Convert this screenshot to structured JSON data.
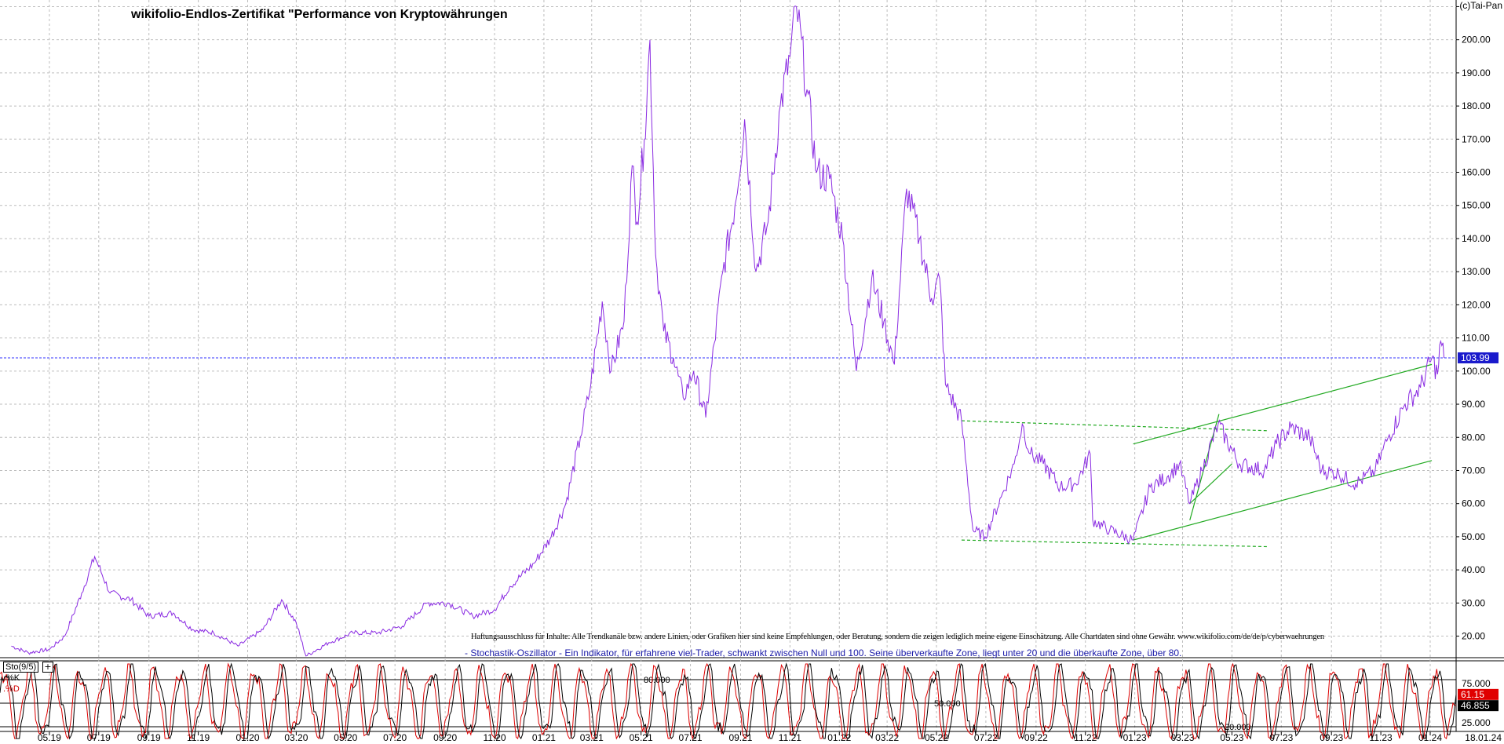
{
  "header": {
    "title": "wikifolio-Endlos-Zertifikat \"Performance von Kryptowährungen",
    "copyright": "(c)Tai-Pan"
  },
  "disclaimer": "Haftungsausschluss für Inhalte: Alle Trendkanäle bzw. andere Linien, oder Grafiken hier sind keine Empfehlungen, oder Beratung, sondern die zeigen lediglich meine eigene Einschätzung. Alle Chartdaten sind ohne Gewähr.  www.wikifolio.com/de/de/p/cyberwaehrungen",
  "stochastic_description": "- Stochastik-Oszillator - Ein Indikator, für erfahrene viel-Trader, schwankt zwischen Null und 100. Seine überverkaufte Zone, liegt unter 20 und die überkaufte Zone, über 80.",
  "indicator_panel": {
    "name": "Sto(9/5)",
    "plus": "+",
    "k_label": "%K",
    "d_label": ".%D",
    "level_80_label": "80.000",
    "level_50_label": "50.000",
    "level_20_label": "20.000"
  },
  "colors": {
    "price_line": "#8a2be2",
    "last_price_line": "#3333ff",
    "trend_lines": "#22aa22",
    "k_line": "#000000",
    "d_line": "#dd0000",
    "last_price_box": "#1a1acc",
    "k_value_box": "#e00000",
    "d_value_box": "#000000"
  },
  "chart_data": [
    {
      "type": "line",
      "title": "wikifolio-Endlos-Zertifikat \"Performance von Kryptowährungen",
      "x_tick_labels": [
        "05.19",
        "07.19",
        "09.19",
        "11.19",
        "01.20",
        "03.20",
        "05.20",
        "07.20",
        "09.20",
        "11.20",
        "01.21",
        "03.21",
        "05.21",
        "07.21",
        "09.21",
        "11.21",
        "01.22",
        "03.22",
        "05.22",
        "07.22",
        "09.22",
        "11.22",
        "01.23",
        "03.23",
        "05.23",
        "07.23",
        "09.23",
        "11.23",
        "01.24"
      ],
      "x_end_label": "18.01.24",
      "y_tick_labels": [
        "20.00",
        "30.00",
        "40.00",
        "50.00",
        "60.00",
        "70.00",
        "80.00",
        "90.00",
        "100.00",
        "110.00",
        "120.00",
        "130.00",
        "140.00",
        "150.00",
        "160.00",
        "170.00",
        "180.00",
        "190.00",
        "200.00",
        "210.00"
      ],
      "ylim": [
        13.5,
        212
      ],
      "last_value": 103.99,
      "last_value_label": "103.99",
      "series": [
        {
          "name": "",
          "points": [
            [
              "2019-03-15",
              17
            ],
            [
              "2019-04-05",
              15
            ],
            [
              "2019-05-01",
              16
            ],
            [
              "2019-05-20",
              20
            ],
            [
              "2019-06-10",
              33
            ],
            [
              "2019-06-26",
              44
            ],
            [
              "2019-07-15",
              33
            ],
            [
              "2019-08-10",
              31
            ],
            [
              "2019-09-01",
              26
            ],
            [
              "2019-10-01",
              27
            ],
            [
              "2019-10-25",
              22
            ],
            [
              "2019-11-20",
              21
            ],
            [
              "2019-12-20",
              17
            ],
            [
              "2020-01-20",
              22
            ],
            [
              "2020-02-12",
              31
            ],
            [
              "2020-03-01",
              24
            ],
            [
              "2020-03-13",
              14
            ],
            [
              "2020-04-10",
              18
            ],
            [
              "2020-05-10",
              21
            ],
            [
              "2020-06-10",
              21
            ],
            [
              "2020-07-10",
              23
            ],
            [
              "2020-08-10",
              30
            ],
            [
              "2020-09-05",
              30
            ],
            [
              "2020-10-05",
              26
            ],
            [
              "2020-11-01",
              28
            ],
            [
              "2020-11-20",
              35
            ],
            [
              "2020-12-20",
              42
            ],
            [
              "2021-01-10",
              50
            ],
            [
              "2021-01-28",
              60
            ],
            [
              "2021-02-15",
              80
            ],
            [
              "2021-02-28",
              96
            ],
            [
              "2021-03-14",
              121
            ],
            [
              "2021-03-25",
              100
            ],
            [
              "2021-04-10",
              115
            ],
            [
              "2021-04-20",
              162
            ],
            [
              "2021-04-26",
              145
            ],
            [
              "2021-05-05",
              170
            ],
            [
              "2021-05-12",
              200
            ],
            [
              "2021-05-19",
              135
            ],
            [
              "2021-05-29",
              112
            ],
            [
              "2021-06-10",
              104
            ],
            [
              "2021-06-22",
              92
            ],
            [
              "2021-07-05",
              100
            ],
            [
              "2021-07-20",
              86
            ],
            [
              "2021-08-10",
              130
            ],
            [
              "2021-08-25",
              150
            ],
            [
              "2021-09-06",
              176
            ],
            [
              "2021-09-20",
              130
            ],
            [
              "2021-10-05",
              145
            ],
            [
              "2021-10-20",
              180
            ],
            [
              "2021-11-01",
              195
            ],
            [
              "2021-11-09",
              210
            ],
            [
              "2021-11-22",
              185
            ],
            [
              "2021-12-04",
              160
            ],
            [
              "2021-12-20",
              158
            ],
            [
              "2022-01-05",
              140
            ],
            [
              "2022-01-22",
              100
            ],
            [
              "2022-02-10",
              128
            ],
            [
              "2022-02-25",
              115
            ],
            [
              "2022-03-10",
              102
            ],
            [
              "2022-03-25",
              155
            ],
            [
              "2022-04-10",
              140
            ],
            [
              "2022-04-25",
              122
            ],
            [
              "2022-05-05",
              128
            ],
            [
              "2022-05-12",
              96
            ],
            [
              "2022-06-01",
              85
            ],
            [
              "2022-06-15",
              52
            ],
            [
              "2022-06-30",
              50
            ],
            [
              "2022-07-20",
              62
            ],
            [
              "2022-08-05",
              72
            ],
            [
              "2022-08-15",
              84
            ],
            [
              "2022-08-25",
              75
            ],
            [
              "2022-09-10",
              72
            ],
            [
              "2022-10-01",
              65
            ],
            [
              "2022-10-20",
              66
            ],
            [
              "2022-11-07",
              75
            ],
            [
              "2022-11-10",
              55
            ],
            [
              "2022-12-01",
              52
            ],
            [
              "2022-12-30",
              49
            ],
            [
              "2023-01-20",
              65
            ],
            [
              "2023-02-10",
              68
            ],
            [
              "2023-02-25",
              72
            ],
            [
              "2023-03-10",
              60
            ],
            [
              "2023-03-25",
              70
            ],
            [
              "2023-04-14",
              84
            ],
            [
              "2023-05-10",
              72
            ],
            [
              "2023-06-10",
              70
            ],
            [
              "2023-06-25",
              78
            ],
            [
              "2023-07-13",
              83
            ],
            [
              "2023-08-05",
              80
            ],
            [
              "2023-08-20",
              70
            ],
            [
              "2023-09-10",
              69
            ],
            [
              "2023-10-01",
              66
            ],
            [
              "2023-10-25",
              70
            ],
            [
              "2023-11-10",
              80
            ],
            [
              "2023-12-01",
              90
            ],
            [
              "2023-12-20",
              95
            ],
            [
              "2024-01-03",
              104
            ],
            [
              "2024-01-10",
              99
            ],
            [
              "2024-01-14",
              109
            ],
            [
              "2024-01-18",
              103.99
            ]
          ]
        }
      ],
      "annotations": [
        {
          "type": "trendline",
          "style": "solid",
          "from": [
            "2022-12-30",
            49
          ],
          "to": [
            "2024-01-03",
            73
          ]
        },
        {
          "type": "trendline",
          "style": "solid",
          "from": [
            "2022-12-30",
            78
          ],
          "to": [
            "2024-01-03",
            102
          ]
        },
        {
          "type": "trendline",
          "style": "solid",
          "from": [
            "2023-03-10",
            55
          ],
          "to": [
            "2023-04-15",
            87
          ]
        },
        {
          "type": "trendline",
          "style": "solid",
          "from": [
            "2023-03-10",
            60
          ],
          "to": [
            "2023-05-01",
            72
          ]
        },
        {
          "type": "trendline",
          "style": "dashed",
          "from": [
            "2022-06-01",
            85
          ],
          "to": [
            "2023-06-15",
            82
          ]
        },
        {
          "type": "trendline",
          "style": "dashed",
          "from": [
            "2022-06-01",
            49
          ],
          "to": [
            "2023-06-15",
            47
          ]
        }
      ]
    },
    {
      "type": "line",
      "title": "Sto(9/5)",
      "ylim": [
        14,
        104
      ],
      "y_tick_labels": [
        "25.000",
        "75.000"
      ],
      "levels": [
        20,
        50,
        80
      ],
      "series": [
        {
          "name": "%K",
          "last_value": 61.15,
          "last_value_label": "61.15",
          "periods": 58,
          "phase": 0
        },
        {
          "name": "%D",
          "last_value": 46.855,
          "last_value_label": "46.855",
          "periods": 58,
          "phase": 0.7
        }
      ]
    }
  ]
}
